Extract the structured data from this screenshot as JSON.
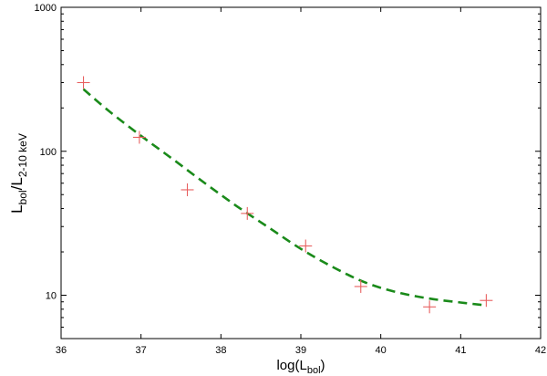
{
  "chart_data": {
    "type": "scatter",
    "xlabel": {
      "base": "log(L",
      "sub": "bol",
      "tail": ")"
    },
    "ylabel": {
      "base": "L",
      "sub": "bol",
      "mid": "/L",
      "sub2": "2-10 keV"
    },
    "xlim": [
      36,
      42
    ],
    "ylim": [
      5,
      1000
    ],
    "ylog": true,
    "xticks": [
      36,
      37,
      38,
      39,
      40,
      41,
      42
    ],
    "xtick_labels": [
      "36",
      "37",
      "38",
      "39",
      "40",
      "41",
      "42"
    ],
    "yticks": [
      10,
      100,
      1000
    ],
    "ytick_labels": [
      "10",
      "100",
      "1000"
    ],
    "grid": false,
    "series": [
      {
        "kind": "points",
        "marker": "plus",
        "color": "#e86060",
        "x": [
          36.28,
          36.98,
          37.58,
          38.33,
          39.06,
          39.75,
          40.61,
          41.32
        ],
        "y": [
          300,
          125,
          54,
          37,
          22,
          11.5,
          8.3,
          9.2
        ]
      },
      {
        "kind": "fit",
        "style": "dashed",
        "color": "#1a8a1a",
        "x": [
          36.28,
          36.6,
          37.0,
          37.4,
          37.8,
          38.2,
          38.6,
          39.0,
          39.4,
          39.8,
          40.2,
          40.6,
          41.0,
          41.32
        ],
        "y": [
          270,
          190,
          128,
          88,
          60,
          41.5,
          29.5,
          21,
          15.7,
          12.3,
          10.5,
          9.5,
          8.9,
          8.5
        ]
      }
    ]
  }
}
